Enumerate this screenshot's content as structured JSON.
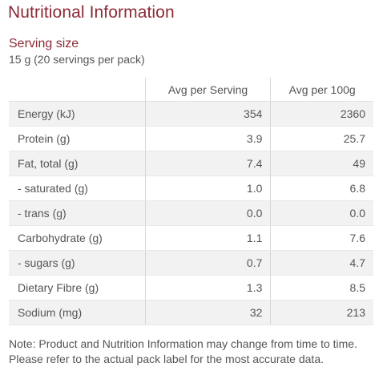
{
  "title": "Nutritional Information",
  "serving": {
    "label": "Serving size",
    "value": "15 g (20 servings per pack)"
  },
  "table": {
    "headers": [
      "",
      "Avg per Serving",
      "Avg per 100g"
    ],
    "rows": [
      {
        "nutrient": "Energy (kJ)",
        "per_serving": "354",
        "per_100g": "2360"
      },
      {
        "nutrient": "Protein (g)",
        "per_serving": "3.9",
        "per_100g": "25.7"
      },
      {
        "nutrient": "Fat, total (g)",
        "per_serving": "7.4",
        "per_100g": "49"
      },
      {
        "nutrient": "- saturated (g)",
        "per_serving": "1.0",
        "per_100g": "6.8"
      },
      {
        "nutrient": "- trans (g)",
        "per_serving": "0.0",
        "per_100g": "0.0"
      },
      {
        "nutrient": "Carbohydrate (g)",
        "per_serving": "1.1",
        "per_100g": "7.6"
      },
      {
        "nutrient": "- sugars (g)",
        "per_serving": "0.7",
        "per_100g": "4.7"
      },
      {
        "nutrient": "Dietary Fibre (g)",
        "per_serving": "1.3",
        "per_100g": "8.5"
      },
      {
        "nutrient": "Sodium (mg)",
        "per_serving": "32",
        "per_100g": "213"
      }
    ]
  },
  "note": "Note: Product and Nutrition Information may change from time to time. Please refer to the actual pack label for the most accurate data.",
  "colors": {
    "accent": "#8c2a36",
    "text": "#555555",
    "row_shade": "#f2f2f2"
  }
}
